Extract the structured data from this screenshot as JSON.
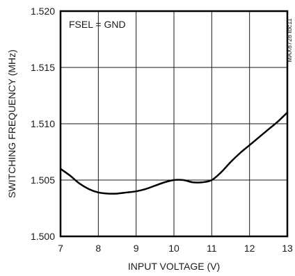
{
  "chart_data": {
    "type": "line",
    "title": "",
    "xlabel": "INPUT VOLTAGE (V)",
    "ylabel": "SWITCHING FREQUENCY (MHz)",
    "xlim": [
      7,
      13
    ],
    "ylim": [
      1.5,
      1.52
    ],
    "x_ticks": [
      7,
      8,
      9,
      10,
      11,
      12,
      13
    ],
    "y_ticks": [
      1.5,
      1.505,
      1.51,
      1.515,
      1.52
    ],
    "y_tick_labels": [
      "1.500",
      "1.505",
      "1.510",
      "1.515",
      "1.520"
    ],
    "grid": true,
    "annotation": "FSEL = GND",
    "side_note": "MAX8728 toc11",
    "series": [
      {
        "x": [
          7.0,
          7.25,
          7.5,
          7.75,
          8.0,
          8.25,
          8.5,
          8.75,
          9.0,
          9.25,
          9.5,
          9.75,
          10.0,
          10.25,
          10.5,
          10.75,
          11.0,
          11.25,
          11.5,
          11.75,
          12.0,
          12.25,
          12.5,
          12.75,
          13.0
        ],
        "values": [
          1.506,
          1.5054,
          1.5047,
          1.5042,
          1.5039,
          1.5038,
          1.5038,
          1.5039,
          1.504,
          1.5042,
          1.5045,
          1.5048,
          1.505,
          1.505,
          1.5048,
          1.5048,
          1.505,
          1.5057,
          1.5066,
          1.5074,
          1.5081,
          1.5088,
          1.5095,
          1.5102,
          1.511
        ]
      }
    ]
  }
}
